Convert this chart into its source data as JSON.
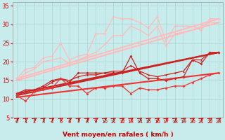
{
  "xlabel": "Vent moyen/en rafales ( km/h )",
  "xlim": [
    -0.5,
    23.5
  ],
  "ylim": [
    5,
    36
  ],
  "yticks": [
    5,
    10,
    15,
    20,
    25,
    30,
    35
  ],
  "xticks": [
    0,
    1,
    2,
    3,
    4,
    5,
    6,
    7,
    8,
    9,
    10,
    11,
    12,
    13,
    14,
    15,
    16,
    17,
    18,
    19,
    20,
    21,
    22,
    23
  ],
  "background_color": "#c8ecec",
  "grid_color": "#b0d8d8",
  "series": [
    {
      "x": [
        0,
        1,
        2,
        3,
        4,
        5,
        6,
        7,
        8,
        9,
        10,
        11,
        12,
        13,
        14,
        15,
        16,
        17,
        18,
        19,
        20,
        21,
        22,
        23
      ],
      "y": [
        15.5,
        18.0,
        18.5,
        21.0,
        21.5,
        25.0,
        20.5,
        21.5,
        22.0,
        27.5,
        27.5,
        32.0,
        31.5,
        31.5,
        30.5,
        29.0,
        32.0,
        25.5,
        29.5,
        29.5,
        29.5,
        28.5,
        31.5,
        31.5
      ],
      "color": "#ffbbbb",
      "linewidth": 0.9,
      "marker": "D",
      "markersize": 2.0,
      "linestyle": "-"
    },
    {
      "x": [
        0,
        23
      ],
      "y": [
        15.5,
        31.5
      ],
      "color": "#ffbbbb",
      "linewidth": 1.5,
      "marker": null,
      "linestyle": "-"
    },
    {
      "x": [
        0,
        1,
        2,
        3,
        4,
        5,
        6,
        7,
        8,
        9,
        10,
        11,
        12,
        13,
        14,
        15,
        16,
        17,
        18,
        19,
        20,
        21,
        22,
        23
      ],
      "y": [
        15.0,
        17.0,
        18.0,
        20.0,
        20.5,
        21.0,
        19.5,
        20.5,
        21.5,
        22.5,
        24.5,
        27.0,
        27.0,
        29.5,
        28.5,
        27.0,
        29.5,
        24.0,
        27.5,
        28.0,
        28.5,
        29.5,
        30.5,
        30.5
      ],
      "color": "#ffbbbb",
      "linewidth": 0.9,
      "marker": "v",
      "markersize": 2.0,
      "linestyle": "-"
    },
    {
      "x": [
        0,
        23
      ],
      "y": [
        15.0,
        30.5
      ],
      "color": "#ffbbbb",
      "linewidth": 1.5,
      "marker": null,
      "linestyle": "-"
    },
    {
      "x": [
        0,
        1,
        2,
        3,
        4,
        5,
        6,
        7,
        8,
        9,
        10,
        11,
        12,
        13,
        14,
        15,
        16,
        17,
        18,
        19,
        20,
        21,
        22,
        23
      ],
      "y": [
        11.0,
        12.0,
        12.5,
        13.5,
        15.0,
        15.5,
        14.5,
        17.0,
        17.0,
        17.0,
        17.0,
        17.0,
        17.0,
        21.5,
        17.0,
        15.5,
        15.5,
        15.0,
        15.5,
        16.0,
        20.5,
        19.5,
        22.5,
        22.5
      ],
      "color": "#cc2222",
      "linewidth": 0.9,
      "marker": "D",
      "markersize": 2.0,
      "linestyle": "-"
    },
    {
      "x": [
        0,
        23
      ],
      "y": [
        11.0,
        22.5
      ],
      "color": "#cc2222",
      "linewidth": 1.5,
      "marker": null,
      "linestyle": "-"
    },
    {
      "x": [
        0,
        1,
        2,
        3,
        4,
        5,
        6,
        7,
        8,
        9,
        10,
        11,
        12,
        13,
        14,
        15,
        16,
        17,
        18,
        19,
        20,
        21,
        22,
        23
      ],
      "y": [
        11.5,
        12.5,
        12.5,
        13.0,
        14.5,
        15.5,
        15.0,
        16.0,
        16.5,
        16.5,
        17.0,
        17.5,
        17.5,
        19.0,
        17.5,
        16.5,
        16.0,
        16.5,
        17.0,
        17.5,
        20.5,
        20.5,
        22.5,
        22.5
      ],
      "color": "#cc2222",
      "linewidth": 0.9,
      "marker": "^",
      "markersize": 2.0,
      "linestyle": "-"
    },
    {
      "x": [
        0,
        23
      ],
      "y": [
        11.5,
        22.5
      ],
      "color": "#cc2222",
      "linewidth": 1.5,
      "marker": null,
      "linestyle": "-"
    },
    {
      "x": [
        0,
        1,
        2,
        3,
        4,
        5,
        6,
        7,
        8,
        9,
        10,
        11,
        12,
        13,
        14,
        15,
        16,
        17,
        18,
        19,
        20,
        21,
        22,
        23
      ],
      "y": [
        11.0,
        9.5,
        12.0,
        12.5,
        13.0,
        15.5,
        13.5,
        13.5,
        11.5,
        13.0,
        13.0,
        13.5,
        13.5,
        11.5,
        13.0,
        12.5,
        12.5,
        13.0,
        13.5,
        13.5,
        14.5,
        15.5,
        16.5,
        17.0
      ],
      "color": "#ee3333",
      "linewidth": 0.9,
      "marker": "D",
      "markersize": 2.0,
      "linestyle": "-"
    },
    {
      "x": [
        0,
        23
      ],
      "y": [
        10.5,
        17.0
      ],
      "color": "#ee3333",
      "linewidth": 1.5,
      "marker": null,
      "linestyle": "-"
    }
  ],
  "arrow_color": "#cc0000",
  "xlabel_color": "#cc0000",
  "tick_color": "#cc0000",
  "xlabel_fontsize": 6.5,
  "ytick_fontsize": 6,
  "xtick_fontsize": 5
}
